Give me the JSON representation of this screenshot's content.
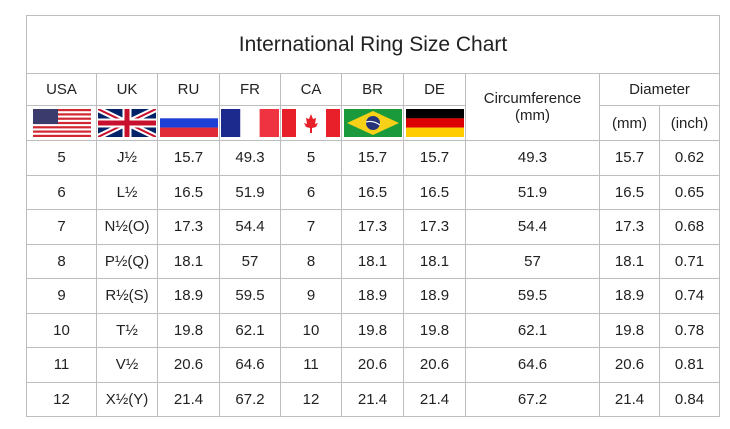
{
  "title": "International Ring Size Chart",
  "headers": {
    "usa": "USA",
    "uk": "UK",
    "ru": "RU",
    "fr": "FR",
    "ca": "CA",
    "br": "BR",
    "de": "DE",
    "circumference": "Circumference",
    "circumference_unit": "(mm)",
    "diameter": "Diameter",
    "diameter_mm": "(mm)",
    "diameter_inch": "(inch)"
  },
  "flags": [
    "us-flag",
    "uk-flag",
    "russia-flag",
    "france-flag",
    "canada-flag",
    "brazil-flag",
    "germany-flag"
  ],
  "rows": [
    [
      "5",
      "J½",
      "15.7",
      "49.3",
      "5",
      "15.7",
      "15.7",
      "49.3",
      "15.7",
      "0.62"
    ],
    [
      "6",
      "L½",
      "16.5",
      "51.9",
      "6",
      "16.5",
      "16.5",
      "51.9",
      "16.5",
      "0.65"
    ],
    [
      "7",
      "N½(O)",
      "17.3",
      "54.4",
      "7",
      "17.3",
      "17.3",
      "54.4",
      "17.3",
      "0.68"
    ],
    [
      "8",
      "P½(Q)",
      "18.1",
      "57",
      "8",
      "18.1",
      "18.1",
      "57",
      "18.1",
      "0.71"
    ],
    [
      "9",
      "R½(S)",
      "18.9",
      "59.5",
      "9",
      "18.9",
      "18.9",
      "59.5",
      "18.9",
      "0.74"
    ],
    [
      "10",
      "T½",
      "19.8",
      "62.1",
      "10",
      "19.8",
      "19.8",
      "62.1",
      "19.8",
      "0.78"
    ],
    [
      "11",
      "V½",
      "20.6",
      "64.6",
      "11",
      "20.6",
      "20.6",
      "64.6",
      "20.6",
      "0.81"
    ],
    [
      "12",
      "X½(Y)",
      "21.4",
      "67.2",
      "12",
      "21.4",
      "21.4",
      "67.2",
      "21.4",
      "0.84"
    ]
  ]
}
